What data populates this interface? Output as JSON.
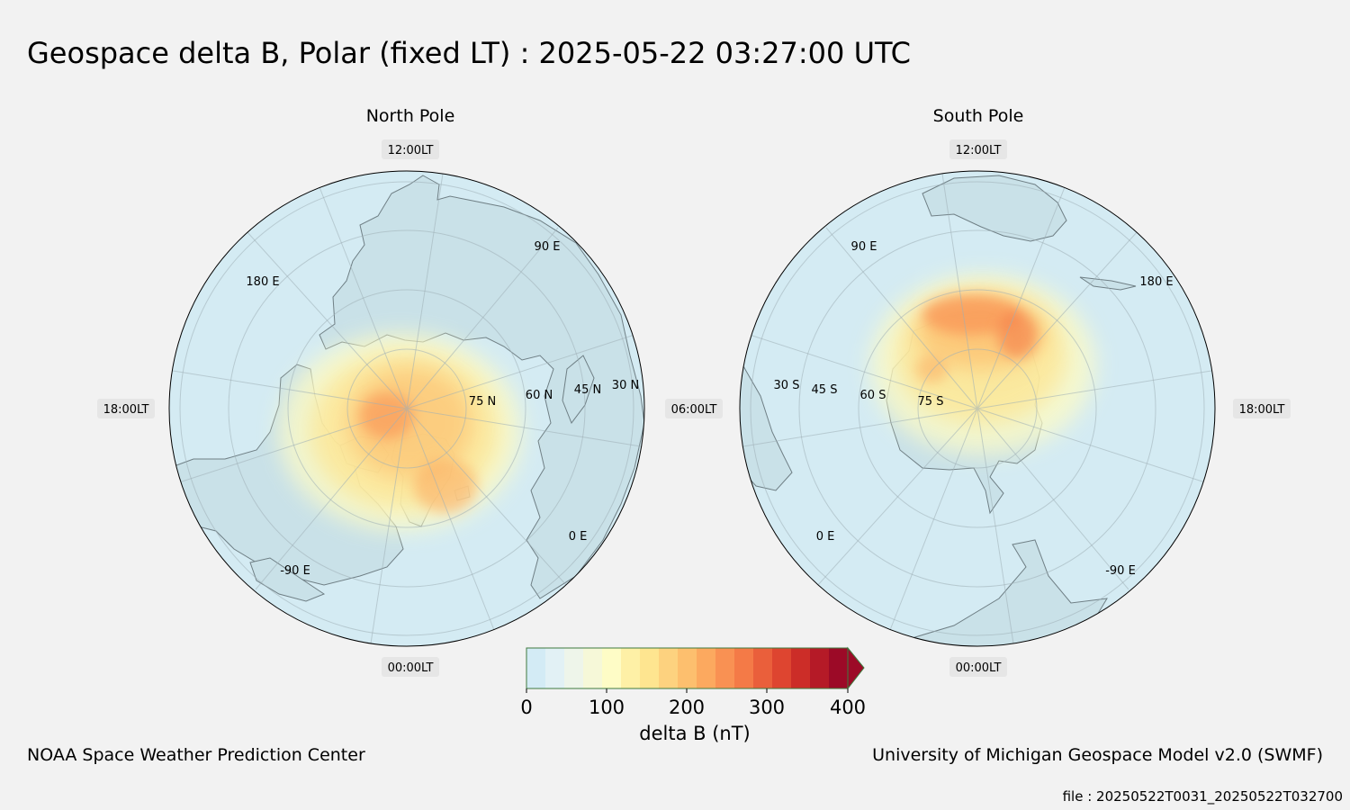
{
  "title": "Geospace delta B, Polar (fixed LT) : 2025-05-22  03:27:00 UTC",
  "north": {
    "title": "North Pole",
    "lt_labels": {
      "top": "12:00LT",
      "bottom": "00:00LT",
      "left": "18:00LT",
      "right": "06:00LT"
    },
    "lat_labels": [
      "75 N",
      "60 N",
      "45 N",
      "30 N"
    ],
    "lon_labels": [
      "90 E",
      "180 E",
      "-90 E",
      "0 E"
    ]
  },
  "south": {
    "title": "South Pole",
    "lt_labels": {
      "top": "12:00LT",
      "bottom": "00:00LT",
      "left": "06:00LT",
      "right": "18:00LT"
    },
    "lat_labels": [
      "75 S",
      "60 S",
      "45 S",
      "30 S"
    ],
    "lon_labels": [
      "90 E",
      "180 E",
      "0 E",
      "-90 E"
    ]
  },
  "colorbar": {
    "label": "delta B (nT)",
    "ticks": [
      "0",
      "100",
      "200",
      "300",
      "400"
    ],
    "colors": [
      "#d3ebf5",
      "#e2f1f5",
      "#eef5ea",
      "#f6f8d8",
      "#fefcc6",
      "#fef0a6",
      "#fee590",
      "#fdd27f",
      "#fdbf6e",
      "#fca95f",
      "#f99153",
      "#f47a47",
      "#ea5f3b",
      "#de4530",
      "#cc2d28",
      "#b51a27",
      "#9c0a27"
    ],
    "extend_color": "#9c0a27"
  },
  "footer": {
    "left": "NOAA Space Weather Prediction Center",
    "right": "University of Michigan Geospace Model v2.0 (SWMF)",
    "file": "file : 20250522T0031_20250522T032700"
  },
  "colors": {
    "ocean": "#d4ebf3",
    "land": "#c9e1e8",
    "coast": "#6f7f85"
  }
}
